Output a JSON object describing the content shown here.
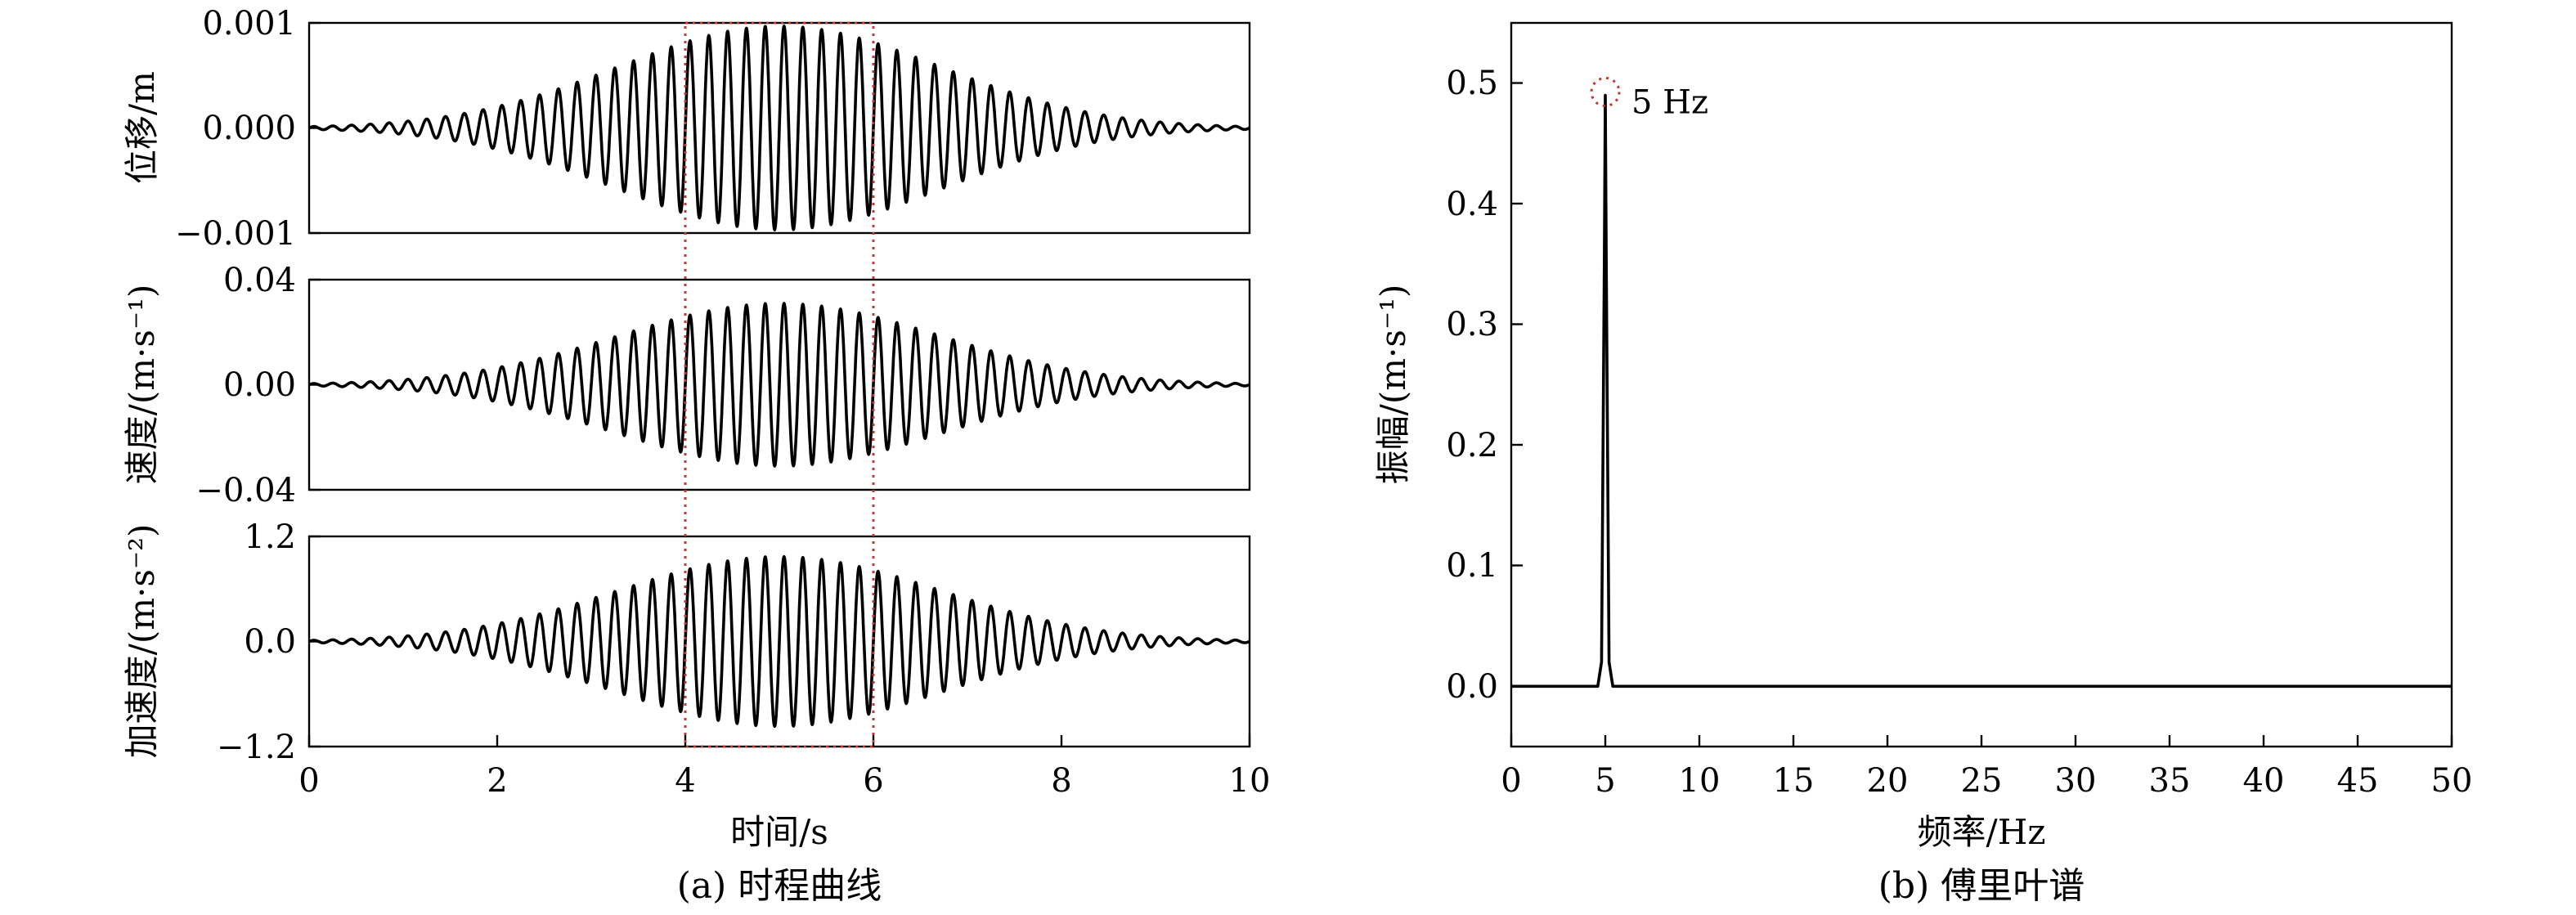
{
  "captions": {
    "a": "(a) 时程曲线",
    "b": "(b) 傅里叶谱"
  },
  "chart_data": [
    {
      "type": "line",
      "panel": "a-top",
      "ylabel": "位移/m",
      "ylim": [
        -0.001,
        0.001
      ],
      "yticks": [
        "0.001",
        "0.000",
        "−0.001"
      ],
      "xlim": [
        0,
        10
      ],
      "signal": {
        "frequency_hz": 5,
        "peak_time_s": 5,
        "peak_amplitude": 0.00097,
        "envelope": "gaussian"
      },
      "highlight_window_s": [
        4,
        6
      ],
      "color": "#000000"
    },
    {
      "type": "line",
      "panel": "a-middle",
      "ylabel": "速度/(m·s⁻¹)",
      "ylim": [
        -0.04,
        0.04
      ],
      "yticks": [
        "0.04",
        "0.00",
        "−0.04"
      ],
      "xlim": [
        0,
        10
      ],
      "signal": {
        "frequency_hz": 5,
        "peak_time_s": 5,
        "peak_amplitude": 0.031,
        "envelope": "gaussian"
      },
      "highlight_window_s": [
        4,
        6
      ],
      "color": "#000000"
    },
    {
      "type": "line",
      "panel": "a-bottom",
      "ylabel": "加速度/(m·s⁻²)",
      "ylim": [
        -1.2,
        1.2
      ],
      "yticks": [
        "1.2",
        "0.0",
        "−1.2"
      ],
      "xlim": [
        0,
        10
      ],
      "xticks": [
        "0",
        "2",
        "4",
        "6",
        "8",
        "10"
      ],
      "xlabel": "时间/s",
      "signal": {
        "frequency_hz": 5,
        "peak_time_s": 5,
        "peak_amplitude": 0.97,
        "envelope": "gaussian"
      },
      "highlight_window_s": [
        4,
        6
      ],
      "color": "#000000"
    },
    {
      "type": "line",
      "panel": "b",
      "xlabel": "频率/Hz",
      "ylabel": "振幅/(m·s⁻¹)",
      "xlim": [
        0,
        50
      ],
      "ylim": [
        -0.05,
        0.55
      ],
      "xticks": [
        "0",
        "5",
        "10",
        "15",
        "20",
        "25",
        "30",
        "35",
        "40",
        "45",
        "50"
      ],
      "yticks": [
        "0.5",
        "0.4",
        "0.3",
        "0.2",
        "0.1",
        "0.0"
      ],
      "x": [
        0,
        4.6,
        4.8,
        4.95,
        5.0,
        5.05,
        5.2,
        5.4,
        50
      ],
      "y": [
        0,
        0,
        0.02,
        0.35,
        0.49,
        0.35,
        0.02,
        0,
        0
      ],
      "peak": {
        "x": 5,
        "y": 0.49,
        "label": "5 Hz",
        "marker_color": "#c0392b"
      },
      "color": "#000000"
    }
  ]
}
